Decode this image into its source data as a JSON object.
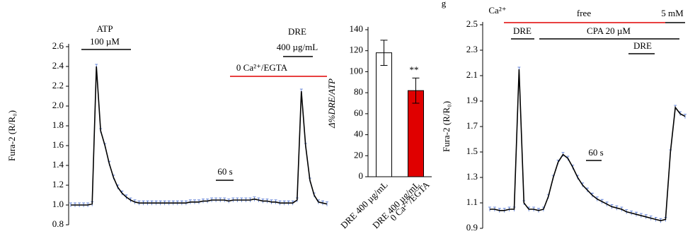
{
  "chart_data": [
    {
      "type": "line",
      "y_label": "Fura-2 (R/R₀)",
      "ylim": [
        0.8,
        2.6
      ],
      "yticks": [
        0.8,
        {
          "value": 1.0,
          "label": "1.0"
        },
        1.2,
        1.4,
        1.6,
        1.8,
        {
          "value": 2.0,
          "label": "2.0"
        },
        2.2,
        2.4,
        2.6
      ],
      "series": [
        {
          "color": "#000000",
          "values": [
            1.0,
            1.0,
            1.0,
            1.0,
            1.0,
            1.01,
            2.4,
            1.75,
            1.6,
            1.42,
            1.28,
            1.18,
            1.12,
            1.08,
            1.05,
            1.03,
            1.02,
            1.02,
            1.02,
            1.02,
            1.02,
            1.02,
            1.02,
            1.02,
            1.02,
            1.02,
            1.02,
            1.02,
            1.03,
            1.03,
            1.03,
            1.04,
            1.04,
            1.05,
            1.05,
            1.05,
            1.05,
            1.04,
            1.05,
            1.05,
            1.05,
            1.05,
            1.05,
            1.06,
            1.05,
            1.04,
            1.04,
            1.03,
            1.03,
            1.02,
            1.02,
            1.02,
            1.02,
            1.05,
            2.15,
            1.6,
            1.25,
            1.1,
            1.03,
            1.02,
            1.01
          ]
        }
      ],
      "annotations": [
        "ATP",
        "100 µM",
        "DRE",
        "400 µg/mL",
        "0 Ca²⁺/EGTA",
        "60 s"
      ]
    },
    {
      "type": "bar",
      "y_label": "Δ%DRE/ATP",
      "ylim": [
        0,
        140
      ],
      "yticks": [
        0,
        20,
        40,
        60,
        80,
        100,
        120,
        140
      ],
      "categories": [
        [
          "DRE 400 µg/mL"
        ],
        [
          "DRE 400 µg/mL",
          "0 Ca²⁺/EGTA"
        ]
      ],
      "values": [
        118,
        82
      ],
      "errors": [
        12,
        12
      ],
      "colors": [
        "#ffffff",
        "#e00000"
      ],
      "annotations": [
        "**"
      ]
    },
    {
      "type": "line",
      "y_label": "Fura-2 (R/R₀)",
      "ylim": [
        0.9,
        2.5
      ],
      "yticks": [
        0.9,
        1.1,
        1.3,
        1.5,
        1.7,
        1.9,
        2.1,
        2.3,
        2.5
      ],
      "series": [
        {
          "color": "#000000",
          "values": [
            1.05,
            1.05,
            1.04,
            1.04,
            1.05,
            1.05,
            2.15,
            1.1,
            1.05,
            1.05,
            1.04,
            1.05,
            1.15,
            1.3,
            1.42,
            1.48,
            1.45,
            1.38,
            1.3,
            1.24,
            1.2,
            1.16,
            1.13,
            1.11,
            1.09,
            1.07,
            1.06,
            1.05,
            1.03,
            1.02,
            1.01,
            1.0,
            0.99,
            0.98,
            0.97,
            0.96,
            0.97,
            1.5,
            1.85,
            1.8,
            1.78
          ]
        }
      ],
      "annotations": [
        "g",
        "Ca²⁺",
        "free",
        "5 mM",
        "DRE",
        "CPA 20 µM",
        "DRE",
        "60 s"
      ]
    }
  ]
}
